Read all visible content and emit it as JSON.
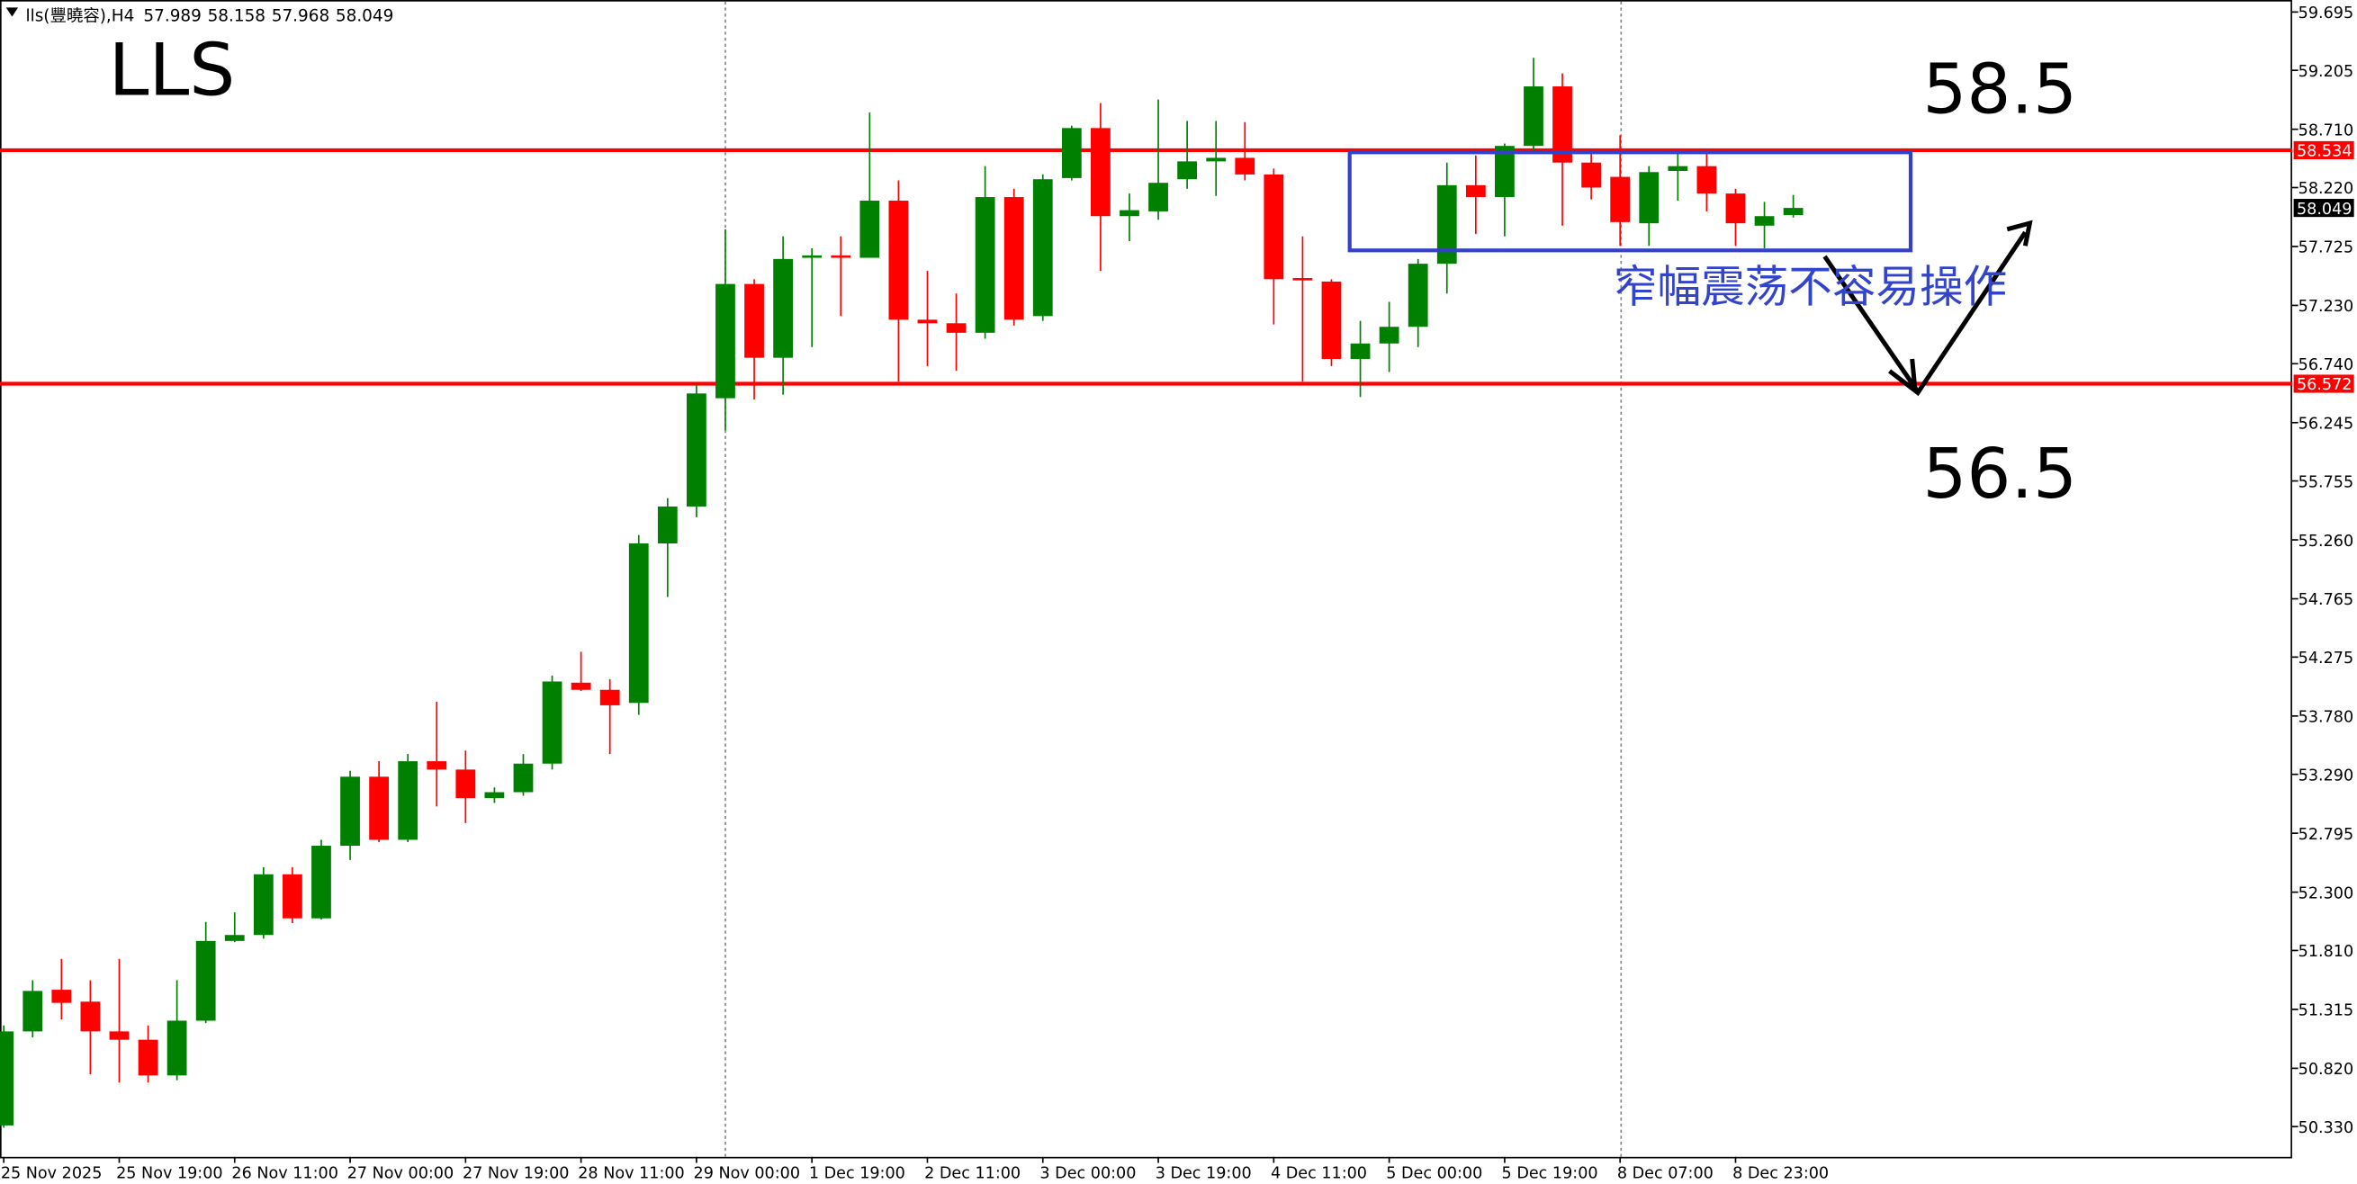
{
  "chart_data": {
    "type": "candlestick",
    "title": "lls(豐曉容),H4",
    "categories": [
      "25 Nov 2025",
      null,
      null,
      null,
      "25 Nov 19:00",
      null,
      null,
      null,
      "26 Nov 11:00",
      null,
      null,
      null,
      "27 Nov 00:00",
      null,
      null,
      null,
      "27 Nov 19:00",
      null,
      null,
      null,
      "28 Nov 11:00",
      null,
      null,
      null,
      "29 Nov 00:00",
      null,
      null,
      null,
      "1 Dec 19:00",
      null,
      null,
      null,
      "2 Dec 11:00",
      null,
      null,
      null,
      "3 Dec 00:00",
      null,
      null,
      null,
      "3 Dec 19:00",
      null,
      null,
      null,
      "4 Dec 11:00",
      null,
      null,
      null,
      "5 Dec 00:00",
      null,
      null,
      null,
      "5 Dec 19:00",
      null,
      null,
      null,
      "8 Dec 07:00",
      null,
      null,
      null,
      "8 Dec 23:00",
      null,
      null
    ],
    "open": [
      50.34,
      51.13,
      51.48,
      51.38,
      51.13,
      51.06,
      50.76,
      51.22,
      51.89,
      51.94,
      52.45,
      52.08,
      52.69,
      53.27,
      52.74,
      53.4,
      53.33,
      53.09,
      53.14,
      53.38,
      54.06,
      54.0,
      53.89,
      55.23,
      55.54,
      56.45,
      57.41,
      56.79,
      57.63,
      57.65,
      57.63,
      58.11,
      57.11,
      57.08,
      57.0,
      58.14,
      57.14,
      58.3,
      58.72,
      57.98,
      58.02,
      58.29,
      58.44,
      58.47,
      58.33,
      57.46,
      57.43,
      56.78,
      56.91,
      57.05,
      57.58,
      58.24,
      58.14,
      58.57,
      59.07,
      58.43,
      58.31,
      57.92,
      58.36,
      58.4,
      58.17,
      57.9,
      57.989
    ],
    "high": [
      51.18,
      51.56,
      51.74,
      51.56,
      51.74,
      51.18,
      51.56,
      52.05,
      52.13,
      52.51,
      52.51,
      52.74,
      53.32,
      53.4,
      53.46,
      53.9,
      53.49,
      53.18,
      53.46,
      54.12,
      54.32,
      54.09,
      55.3,
      55.61,
      56.56,
      57.87,
      57.45,
      57.81,
      57.71,
      57.81,
      58.85,
      58.28,
      57.52,
      57.33,
      58.4,
      58.21,
      58.33,
      58.74,
      58.93,
      58.17,
      58.96,
      58.78,
      58.78,
      58.77,
      58.38,
      57.81,
      57.45,
      57.1,
      57.26,
      57.62,
      58.43,
      58.49,
      58.59,
      59.31,
      59.18,
      58.52,
      58.66,
      58.4,
      58.53,
      58.53,
      58.21,
      58.1,
      58.158
    ],
    "low": [
      50.32,
      51.08,
      51.23,
      50.77,
      50.7,
      50.7,
      50.72,
      51.2,
      51.88,
      51.91,
      52.04,
      52.07,
      52.57,
      52.72,
      52.72,
      53.02,
      52.88,
      53.05,
      53.11,
      53.33,
      53.99,
      53.46,
      53.79,
      54.78,
      55.45,
      56.18,
      56.44,
      56.48,
      56.88,
      57.14,
      57.64,
      56.59,
      56.72,
      56.68,
      56.95,
      57.06,
      57.1,
      58.28,
      57.52,
      57.77,
      57.95,
      58.21,
      58.15,
      58.28,
      57.07,
      56.59,
      56.72,
      56.46,
      56.67,
      56.88,
      57.33,
      57.83,
      57.81,
      58.53,
      57.9,
      58.12,
      57.73,
      57.73,
      58.11,
      58.02,
      57.73,
      57.71,
      57.968
    ],
    "close": [
      51.13,
      51.47,
      51.37,
      51.13,
      51.06,
      50.76,
      51.22,
      51.89,
      51.94,
      52.45,
      52.08,
      52.69,
      53.27,
      52.74,
      53.4,
      53.33,
      53.09,
      53.14,
      53.38,
      54.07,
      54.0,
      53.87,
      55.23,
      55.54,
      56.49,
      57.41,
      56.79,
      57.62,
      57.65,
      57.63,
      58.11,
      57.11,
      57.08,
      57.0,
      58.14,
      57.11,
      58.29,
      58.72,
      57.98,
      58.03,
      58.26,
      58.44,
      58.47,
      58.33,
      57.45,
      57.44,
      56.78,
      56.91,
      57.05,
      57.58,
      58.24,
      58.14,
      58.57,
      59.07,
      58.43,
      58.22,
      57.93,
      58.35,
      58.4,
      58.17,
      57.92,
      57.98,
      58.049
    ],
    "up_color": "#008000",
    "down_color": "#ff0000",
    "ylim": [
      50.076,
      59.796
    ],
    "yticks": [
      59.695,
      59.205,
      {
        "value": 58.71,
        "label": "58.710"
      },
      {
        "value": 58.22,
        "label": "58.220"
      },
      57.725,
      {
        "value": 57.23,
        "label": "57.230"
      },
      {
        "value": 56.74,
        "label": "56.740"
      },
      56.245,
      55.755,
      {
        "value": 55.26,
        "label": "55.260"
      },
      54.765,
      54.275,
      {
        "value": 53.78,
        "label": "53.780"
      },
      {
        "value": 53.29,
        "label": "53.290"
      },
      52.795,
      {
        "value": 52.3,
        "label": "52.300"
      },
      {
        "value": 51.81,
        "label": "51.810"
      },
      51.315,
      {
        "value": 50.82,
        "label": "50.820"
      },
      {
        "value": 50.33,
        "label": "50.330"
      }
    ],
    "hlines": [
      {
        "value": 58.534,
        "color": "#ff0000"
      },
      {
        "value": 56.572,
        "color": "#ff0000"
      }
    ],
    "annotations": [
      "LLS",
      "58.5",
      "56.5",
      "窄幅震荡不容易操作"
    ]
  }
}
